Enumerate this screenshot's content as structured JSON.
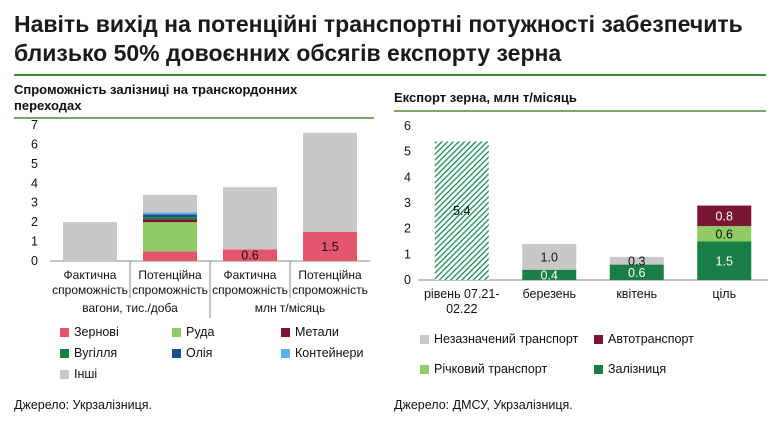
{
  "title": "Навіть вихід на потенційні транспортні потужності забезпечить близько 50% довоєнних обсягів експорту зерна",
  "colors": {
    "zernovi": "#e4566d",
    "ruda": "#8fcc66",
    "metaly": "#7a1532",
    "vuhillia": "#1a7f46",
    "oliia": "#1d4f8a",
    "kontejnery": "#5ab4e5",
    "inshi": "#c8c8c8",
    "zaliznytsia": "#1a7f46",
    "richkovyi": "#8fcc66",
    "avto": "#7a1532",
    "nezaznachenyi": "#c8c8c8",
    "hatch": "#1a8a55"
  },
  "left_chart": {
    "title": "Спроможність залізниці на транскордонних переходах",
    "source": "Джерело: Укрзалізниця.",
    "group_labels": [
      "вагони, тис./доба",
      "млн т/місяць"
    ],
    "legend": [
      {
        "key": "zernovi",
        "label": "Зернові"
      },
      {
        "key": "ruda",
        "label": "Руда"
      },
      {
        "key": "metaly",
        "label": "Метали"
      },
      {
        "key": "vuhillia",
        "label": "Вугілля"
      },
      {
        "key": "oliia",
        "label": "Олія"
      },
      {
        "key": "kontejnery",
        "label": "Контейнери"
      },
      {
        "key": "inshi",
        "label": "Інші"
      }
    ]
  },
  "right_chart": {
    "title": "Експорт зерна, млн т/місяць",
    "source": "Джерело: ДМСУ, Укрзалізниця.",
    "legend": [
      {
        "key": "nezaznachenyi",
        "label": "Незазначений транспорт"
      },
      {
        "key": "avto",
        "label": "Автотранспорт"
      },
      {
        "key": "richkovyi",
        "label": "Річковий транспорт"
      },
      {
        "key": "zaliznytsia",
        "label": "Залізниця"
      }
    ]
  },
  "chart_data": [
    {
      "type": "bar",
      "stacked": true,
      "title": "Спроможність залізниці на транскордонних переходах",
      "categories": [
        "Фактична спроможність",
        "Потенційна спроможність",
        "Фактична спроможність",
        "Потенційна спроможність"
      ],
      "category_lines": [
        [
          "Фактична",
          "спроможність"
        ],
        [
          "Потенційна",
          "спроможність"
        ],
        [
          "Фактична",
          "спроможність"
        ],
        [
          "Потенційна",
          "спроможність"
        ]
      ],
      "ylim": [
        0,
        7
      ],
      "yticks": [
        0,
        1,
        2,
        3,
        4,
        5,
        6,
        7
      ],
      "grid": false,
      "series": [
        {
          "name": "Зернові",
          "key": "zernovi",
          "values": [
            0,
            0.5,
            0.6,
            1.5
          ],
          "labels": [
            "",
            "",
            "0.6",
            "1.5"
          ]
        },
        {
          "name": "Руда",
          "key": "ruda",
          "values": [
            0,
            1.5,
            0,
            0
          ],
          "labels": [
            "",
            "",
            "",
            ""
          ]
        },
        {
          "name": "Метали",
          "key": "metaly",
          "values": [
            0,
            0.15,
            0,
            0
          ],
          "labels": [
            "",
            "",
            "",
            ""
          ]
        },
        {
          "name": "Вугілля",
          "key": "vuhillia",
          "values": [
            0,
            0.1,
            0,
            0
          ],
          "labels": [
            "",
            "",
            "",
            ""
          ]
        },
        {
          "name": "Олія",
          "key": "oliia",
          "values": [
            0,
            0.15,
            0,
            0
          ],
          "labels": [
            "",
            "",
            "",
            ""
          ]
        },
        {
          "name": "Контейнери",
          "key": "kontejnery",
          "values": [
            0,
            0.1,
            0,
            0
          ],
          "labels": [
            "",
            "",
            "",
            ""
          ]
        },
        {
          "name": "Інші",
          "key": "inshi",
          "values": [
            2.0,
            0.9,
            3.2,
            5.1
          ],
          "labels": [
            "",
            "",
            "",
            ""
          ]
        }
      ]
    },
    {
      "type": "bar",
      "stacked": true,
      "title": "Експорт зерна, млн т/місяць",
      "categories": [
        "рівень 07.21-02.22",
        "березень",
        "квітень",
        "ціль"
      ],
      "category_lines": [
        [
          "рівень 07.21-",
          "02.22"
        ],
        [
          "березень"
        ],
        [
          "квітень"
        ],
        [
          "ціль"
        ]
      ],
      "ylim": [
        0,
        6
      ],
      "yticks": [
        0,
        1,
        2,
        3,
        4,
        5,
        6
      ],
      "grid": false,
      "hatched_total": {
        "index": 0,
        "value": 5.4,
        "label": "5.4"
      },
      "series": [
        {
          "name": "Залізниця",
          "key": "zaliznytsia",
          "values": [
            0,
            0.4,
            0.6,
            1.5
          ],
          "labels": [
            "",
            "0.4",
            "0.6",
            "1.5"
          ]
        },
        {
          "name": "Річковий транспорт",
          "key": "richkovyi",
          "values": [
            0,
            0,
            0,
            0.6
          ],
          "labels": [
            "",
            "",
            "",
            "0.6"
          ]
        },
        {
          "name": "Автотранспорт",
          "key": "avto",
          "values": [
            0,
            0,
            0,
            0.8
          ],
          "labels": [
            "",
            "",
            "",
            "0.8"
          ]
        },
        {
          "name": "Незазначений транспорт",
          "key": "nezaznachenyi",
          "values": [
            0,
            1.0,
            0.3,
            0
          ],
          "labels": [
            "",
            "1.0",
            "0.3",
            ""
          ]
        }
      ]
    }
  ]
}
